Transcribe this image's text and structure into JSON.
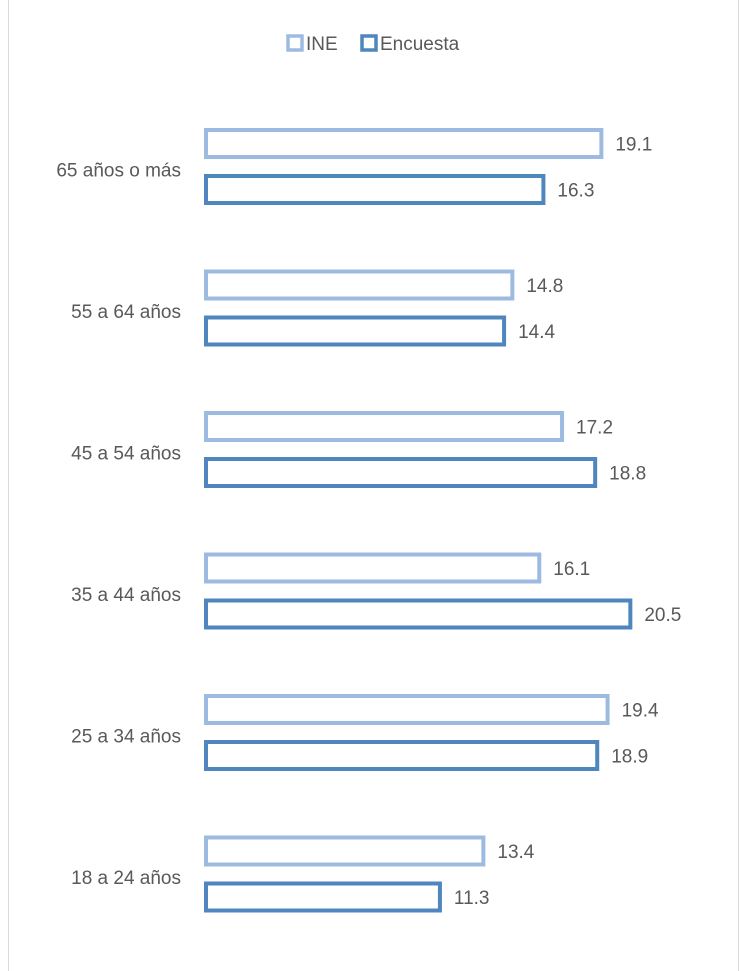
{
  "chart_data": {
    "type": "bar",
    "orientation": "horizontal",
    "categories": [
      "65 años o más",
      "55 a 64 años",
      "45 a 54 años",
      "35 a 44 años",
      "25 a 34 años",
      "18 a 24 años"
    ],
    "series": [
      {
        "name": "INE",
        "color": "#9dbbe0",
        "values": [
          19.1,
          14.8,
          17.2,
          16.1,
          19.4,
          13.4
        ]
      },
      {
        "name": "Encuesta",
        "color": "#4f86bd",
        "values": [
          16.3,
          14.4,
          18.8,
          20.5,
          18.9,
          11.3
        ]
      }
    ],
    "title": "",
    "xlabel": "",
    "ylabel": "",
    "xlim": [
      0,
      25
    ],
    "grid": false,
    "legend_position": "top-center",
    "value_labels": [
      [
        "19.1",
        "14.8",
        "17.2",
        "16.1",
        "19.4",
        "13.4"
      ],
      [
        "16.3",
        "14.4",
        "18.8",
        "20.5",
        "18.9",
        "11.3"
      ]
    ]
  }
}
